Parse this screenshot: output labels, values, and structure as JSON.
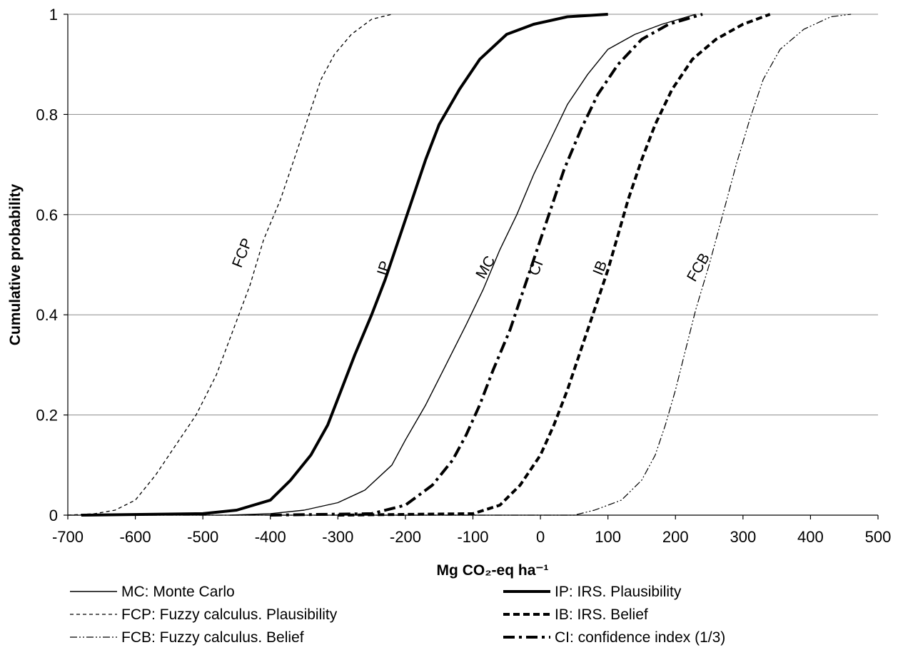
{
  "chart_data": {
    "type": "line",
    "xlabel": "Mg CO₂-eq ha⁻¹",
    "ylabel": "Cumulative probability",
    "xlim": [
      -700,
      500
    ],
    "ylim": [
      0,
      1
    ],
    "xticks": [
      -700,
      -600,
      -500,
      -400,
      -300,
      -200,
      -100,
      0,
      100,
      200,
      300,
      400,
      500
    ],
    "yticks": [
      0,
      0.2,
      0.4,
      0.6,
      0.8,
      1
    ],
    "grid": "horizontal",
    "legend_position": "bottom",
    "series": [
      {
        "name": "MC: Monte Carlo",
        "label": "MC",
        "style": "solid-thin",
        "points": [
          [
            -460,
            0
          ],
          [
            -400,
            0.003
          ],
          [
            -350,
            0.01
          ],
          [
            -300,
            0.025
          ],
          [
            -260,
            0.05
          ],
          [
            -220,
            0.1
          ],
          [
            -200,
            0.15
          ],
          [
            -170,
            0.22
          ],
          [
            -140,
            0.3
          ],
          [
            -110,
            0.38
          ],
          [
            -85,
            0.45
          ],
          [
            -60,
            0.53
          ],
          [
            -35,
            0.6
          ],
          [
            -10,
            0.68
          ],
          [
            15,
            0.75
          ],
          [
            40,
            0.82
          ],
          [
            70,
            0.88
          ],
          [
            100,
            0.93
          ],
          [
            140,
            0.96
          ],
          [
            180,
            0.98
          ],
          [
            230,
            1.0
          ]
        ]
      },
      {
        "name": "FCP: Fuzzy calculus. Plausibility",
        "label": "FCP",
        "style": "dashed-thin",
        "points": [
          [
            -700,
            0
          ],
          [
            -660,
            0.003
          ],
          [
            -630,
            0.01
          ],
          [
            -600,
            0.03
          ],
          [
            -570,
            0.08
          ],
          [
            -540,
            0.14
          ],
          [
            -510,
            0.2
          ],
          [
            -480,
            0.28
          ],
          [
            -455,
            0.37
          ],
          [
            -430,
            0.46
          ],
          [
            -410,
            0.55
          ],
          [
            -385,
            0.63
          ],
          [
            -365,
            0.71
          ],
          [
            -345,
            0.79
          ],
          [
            -325,
            0.87
          ],
          [
            -305,
            0.92
          ],
          [
            -280,
            0.96
          ],
          [
            -250,
            0.99
          ],
          [
            -220,
            1.0
          ]
        ]
      },
      {
        "name": "FCB: Fuzzy calculus. Belief",
        "label": "FCB",
        "style": "dashdotdot-thin",
        "points": [
          [
            -700,
            0
          ],
          [
            0,
            0
          ],
          [
            50,
            0
          ],
          [
            80,
            0.01
          ],
          [
            120,
            0.03
          ],
          [
            150,
            0.07
          ],
          [
            170,
            0.12
          ],
          [
            185,
            0.18
          ],
          [
            200,
            0.25
          ],
          [
            215,
            0.33
          ],
          [
            230,
            0.41
          ],
          [
            250,
            0.5
          ],
          [
            270,
            0.6
          ],
          [
            290,
            0.7
          ],
          [
            310,
            0.79
          ],
          [
            330,
            0.87
          ],
          [
            355,
            0.93
          ],
          [
            390,
            0.97
          ],
          [
            430,
            0.995
          ],
          [
            460,
            1.0
          ]
        ]
      },
      {
        "name": "IP: IRS. Plausibility",
        "label": "IP",
        "style": "solid-thick",
        "points": [
          [
            -680,
            0
          ],
          [
            -500,
            0.003
          ],
          [
            -450,
            0.01
          ],
          [
            -400,
            0.03
          ],
          [
            -370,
            0.07
          ],
          [
            -340,
            0.12
          ],
          [
            -315,
            0.18
          ],
          [
            -295,
            0.25
          ],
          [
            -275,
            0.32
          ],
          [
            -250,
            0.4
          ],
          [
            -230,
            0.47
          ],
          [
            -210,
            0.55
          ],
          [
            -190,
            0.63
          ],
          [
            -170,
            0.71
          ],
          [
            -150,
            0.78
          ],
          [
            -120,
            0.85
          ],
          [
            -90,
            0.91
          ],
          [
            -50,
            0.96
          ],
          [
            -10,
            0.98
          ],
          [
            40,
            0.995
          ],
          [
            100,
            1.0
          ]
        ]
      },
      {
        "name": "IB: IRS. Belief",
        "label": "IB",
        "style": "dashed-thick",
        "points": [
          [
            -300,
            0
          ],
          [
            -100,
            0.003
          ],
          [
            -60,
            0.02
          ],
          [
            -30,
            0.06
          ],
          [
            0,
            0.12
          ],
          [
            20,
            0.18
          ],
          [
            40,
            0.25
          ],
          [
            60,
            0.33
          ],
          [
            80,
            0.41
          ],
          [
            100,
            0.49
          ],
          [
            115,
            0.56
          ],
          [
            130,
            0.63
          ],
          [
            150,
            0.71
          ],
          [
            170,
            0.78
          ],
          [
            195,
            0.85
          ],
          [
            225,
            0.91
          ],
          [
            260,
            0.95
          ],
          [
            300,
            0.98
          ],
          [
            340,
            1.0
          ]
        ]
      },
      {
        "name": "CI: confidence index (1/3)",
        "label": "CI",
        "style": "dashdot-thick",
        "points": [
          [
            -400,
            0
          ],
          [
            -250,
            0.003
          ],
          [
            -200,
            0.02
          ],
          [
            -160,
            0.06
          ],
          [
            -130,
            0.11
          ],
          [
            -110,
            0.16
          ],
          [
            -90,
            0.22
          ],
          [
            -70,
            0.29
          ],
          [
            -45,
            0.37
          ],
          [
            -25,
            0.45
          ],
          [
            -5,
            0.53
          ],
          [
            15,
            0.61
          ],
          [
            35,
            0.69
          ],
          [
            60,
            0.77
          ],
          [
            85,
            0.84
          ],
          [
            115,
            0.9
          ],
          [
            150,
            0.95
          ],
          [
            190,
            0.98
          ],
          [
            240,
            1.0
          ]
        ]
      }
    ]
  }
}
